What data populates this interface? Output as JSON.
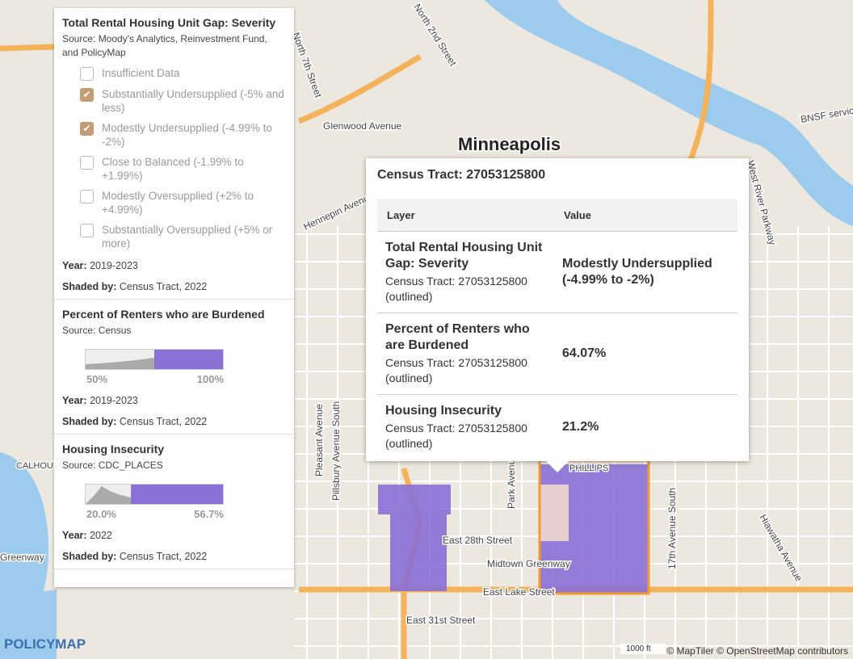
{
  "legend": {
    "sections": [
      {
        "title": "Total Rental Housing Unit Gap: Severity",
        "source": "Source: Moody's Analytics, Reinvestment Fund, and PolicyMap",
        "items": [
          {
            "label": "Insufficient Data",
            "checked": false
          },
          {
            "label": "Substantially Undersupplied (-5% and less)",
            "checked": true
          },
          {
            "label": "Modestly Undersupplied (-4.99% to -2%)",
            "checked": true
          },
          {
            "label": "Close to Balanced (-1.99% to +1.99%)",
            "checked": false
          },
          {
            "label": "Modestly Oversupplied (+2% to +4.99%)",
            "checked": false
          },
          {
            "label": "Substantially Oversupplied (+5% or more)",
            "checked": false
          }
        ],
        "year_label": "Year:",
        "year": "2019-2023",
        "shaded_label": "Shaded by:",
        "shaded": "Census Tract, 2022"
      },
      {
        "title": "Percent of Renters who are Burdened",
        "source": "Source: Census",
        "range_min": "50%",
        "range_max": "100%",
        "year_label": "Year:",
        "year": "2019-2023",
        "shaded_label": "Shaded by:",
        "shaded": "Census Tract, 2022"
      },
      {
        "title": "Housing Insecurity",
        "source": "Source: CDC_PLACES",
        "range_min": "20.0%",
        "range_max": "56.7%",
        "year_label": "Year:",
        "year": "2022",
        "shaded_label": "Shaded by:",
        "shaded": "Census Tract, 2022"
      }
    ]
  },
  "popup": {
    "title": "Census Tract: 27053125800",
    "headers": [
      "Layer",
      "Value"
    ],
    "rows": [
      {
        "layer": "Total Rental Housing Unit Gap: Severity",
        "sub": "Census Tract: 27053125800 (outlined)",
        "value": "Modestly Undersupplied (-4.99% to -2%)"
      },
      {
        "layer": "Percent of Renters who are Burdened",
        "sub": "Census Tract: 27053125800 (outlined)",
        "value": "64.07%"
      },
      {
        "layer": "Housing Insecurity",
        "sub": "Census Tract: 27053125800 (outlined)",
        "value": "21.2%"
      }
    ]
  },
  "map": {
    "labels": [
      "Minneapolis",
      "North 2nd Street",
      "North 7th Street",
      "Glenwood Avenue",
      "Hennepin Avenue",
      "BNSF service",
      "West River Parkway",
      "East 28th Street",
      "Midtown Greenway",
      "East Lake Street",
      "East 31st Street",
      "PHILLIPS",
      "Pleasant Avenue",
      "Pillsbury Avenue South",
      "Park Avenue",
      "17th Avenue South",
      "Hiawatha Avenue",
      "CALHOUN",
      "Greenway"
    ],
    "scale": "1000 ft",
    "attribution": "© MapTiler © OpenStreetMap contributors",
    "logo": "POLICYMAP"
  }
}
